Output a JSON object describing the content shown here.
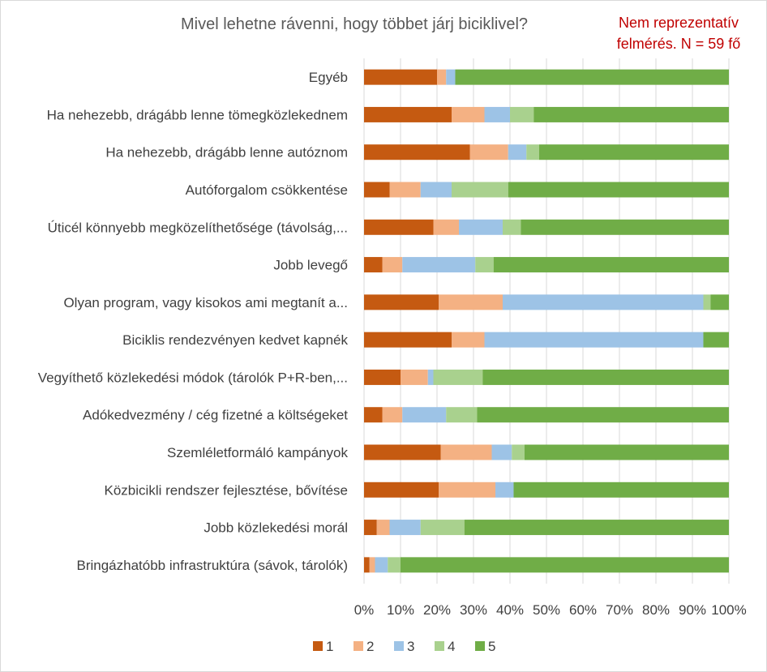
{
  "chart_data": {
    "type": "bar",
    "orientation": "horizontal",
    "stacked": "percent",
    "title": "Mivel lehetne rávenni, hogy többet járj biciklivel?",
    "annotation": "Nem reprezentatív felmérés. N = 59 fő",
    "categories": [
      "Egyéb",
      "Ha nehezebb, drágább lenne tömegközlekednem",
      "Ha nehezebb, drágább lenne autóznom",
      "Autóforgalom csökkentése",
      "Úticél könnyebb megközelíthetősége (távolság,...",
      "Jobb levegő",
      "Olyan program, vagy kisokos ami megtanít a...",
      "Biciklis rendezvényen kedvet kapnék",
      "Vegyíthető közlekedési módok (tárolók P+R-ben,...",
      "Adókedvezmény / cég fizetné a költségeket",
      "Szemléletformáló kampányok",
      "Közbicikli rendszer fejlesztése, bővítése",
      "Jobb közlekedési morál",
      "Bringázhatóbb infrastruktúra (sávok, tárolók)"
    ],
    "series": [
      {
        "name": "1",
        "color": "#c55a11",
        "values": [
          20,
          24,
          29,
          7,
          19,
          5,
          20.5,
          24,
          10,
          5,
          21,
          20.5,
          3.5,
          1.5
        ]
      },
      {
        "name": "2",
        "color": "#f4b183",
        "values": [
          2.5,
          9,
          10.5,
          8.5,
          7,
          5.5,
          17.5,
          9,
          7.5,
          5.5,
          14,
          15.5,
          3.5,
          1.5
        ]
      },
      {
        "name": "3",
        "color": "#9dc3e6",
        "values": [
          2.5,
          7,
          5,
          8.5,
          12,
          20,
          55,
          60,
          1.5,
          12,
          5.5,
          5,
          8.5,
          3.5
        ]
      },
      {
        "name": "4",
        "color": "#a9d18e",
        "values": [
          0,
          6.5,
          3.5,
          15.5,
          5,
          5,
          2,
          0,
          13.5,
          8.5,
          3.5,
          0,
          12,
          3.5
        ]
      },
      {
        "name": "5",
        "color": "#70ad47",
        "values": [
          75,
          53.5,
          52,
          60.5,
          57,
          64.5,
          5,
          7,
          67.5,
          69,
          56,
          59,
          72.5,
          90
        ]
      }
    ],
    "x_ticks": [
      "0%",
      "10%",
      "20%",
      "30%",
      "40%",
      "50%",
      "60%",
      "70%",
      "80%",
      "90%",
      "100%"
    ],
    "xlim": [
      0,
      100
    ],
    "grid": true,
    "legend_position": "bottom"
  }
}
